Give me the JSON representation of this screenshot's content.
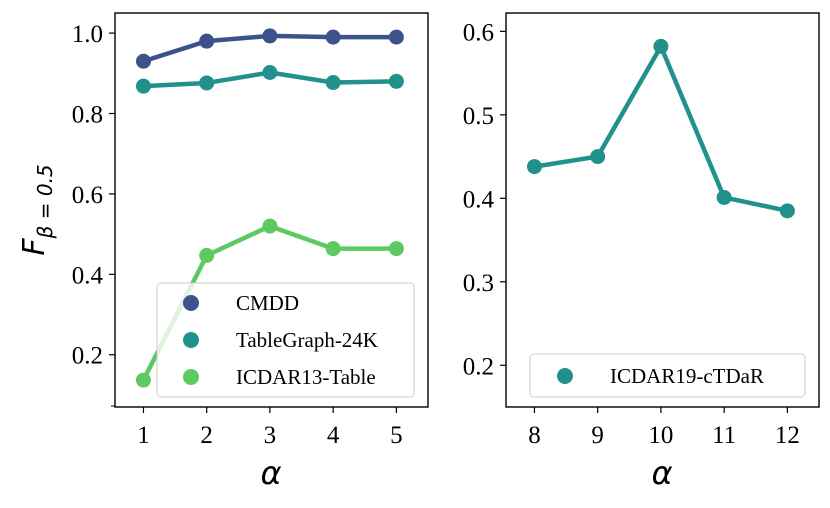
{
  "figure": {
    "ylabel_main": "F",
    "ylabel_sub": "β = 0.5"
  },
  "chart_data": [
    {
      "type": "line",
      "panel": "left",
      "xlabel": "α",
      "ylabel": "Fβ = 0.5",
      "x": [
        1,
        2,
        3,
        4,
        5
      ],
      "xlim": [
        0.55,
        5.5
      ],
      "ylim": [
        0.07,
        1.05
      ],
      "xticks": [
        "1",
        "2",
        "3",
        "4",
        "5"
      ],
      "yticks": [
        "0.2",
        "0.4",
        "0.6",
        "0.8",
        "1.0"
      ],
      "legend_position": "lower-right",
      "series": [
        {
          "name": "CMDD",
          "color": "#3b528b",
          "values": [
            0.93,
            0.98,
            0.993,
            0.99,
            0.99
          ]
        },
        {
          "name": "TableGraph-24K",
          "color": "#21918c",
          "values": [
            0.868,
            0.876,
            0.902,
            0.877,
            0.88
          ]
        },
        {
          "name": "ICDAR13-Table",
          "color": "#5ec962",
          "values": [
            0.137,
            0.447,
            0.52,
            0.464,
            0.464
          ]
        }
      ]
    },
    {
      "type": "line",
      "panel": "right",
      "xlabel": "α",
      "ylabel": "",
      "x": [
        8,
        9,
        10,
        11,
        12
      ],
      "xlim": [
        7.55,
        12.5
      ],
      "ylim": [
        0.15,
        0.622
      ],
      "xticks": [
        "8",
        "9",
        "10",
        "11",
        "12"
      ],
      "yticks": [
        "0.2",
        "0.3",
        "0.4",
        "0.5",
        "0.6"
      ],
      "legend_position": "lower-right",
      "series": [
        {
          "name": "ICDAR19-cTDaR",
          "color": "#21918c",
          "values": [
            0.438,
            0.45,
            0.582,
            0.401,
            0.385
          ]
        }
      ]
    }
  ]
}
